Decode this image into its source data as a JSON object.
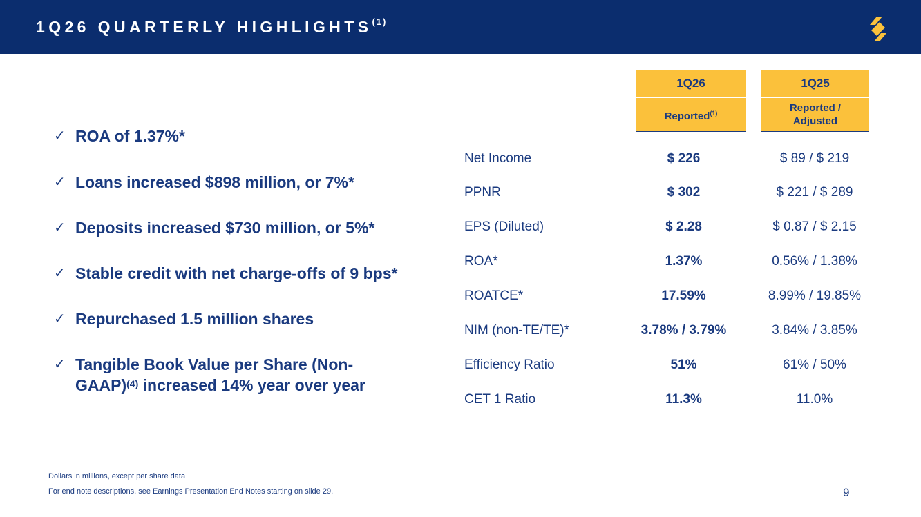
{
  "header": {
    "title": "1Q26 QUARTERLY HIGHLIGHTS",
    "title_note": "(1)",
    "logo_icon": "brand-s-logo-icon",
    "bg_color": "#0b2d6e",
    "accent_color": "#fbc13b"
  },
  "bullets": [
    {
      "text": "ROA of 1.37%*"
    },
    {
      "text": "Loans increased $898 million, or 7%*"
    },
    {
      "text": "Deposits increased $730 million, or 5%*"
    },
    {
      "text": "Stable credit with net charge-offs of 9 bps*"
    },
    {
      "text": "Repurchased 1.5 million shares"
    },
    {
      "text_a": "Tangible Book Value per Share (Non-GAAP)",
      "note": "(4)",
      "text_b": " increased 14% year over year"
    }
  ],
  "check_icon": "checkmark-icon",
  "table": {
    "col1": {
      "period": "1Q26",
      "basis": "Reported",
      "basis_note": "(1)"
    },
    "col2": {
      "period": "1Q25",
      "basis": "Reported / Adjusted"
    },
    "rows": [
      {
        "label": "Net Income",
        "v1": "$ 226",
        "v2": "$ 89 / $ 219"
      },
      {
        "label": "PPNR",
        "v1": "$ 302",
        "v2": "$ 221 / $ 289"
      },
      {
        "label": "EPS (Diluted)",
        "v1": "$ 2.28",
        "v2": "$ 0.87 / $ 2.15"
      },
      {
        "label": "ROA*",
        "v1": "1.37%",
        "v2": "0.56% / 1.38%"
      },
      {
        "label": "ROATCE*",
        "v1": "17.59%",
        "v2": "8.99% / 19.85%"
      },
      {
        "label": "NIM (non-TE/TE)*",
        "v1": "3.78% / 3.79%",
        "v2": "3.84% / 3.85%"
      },
      {
        "label": "Efficiency Ratio",
        "v1": "51%",
        "v2": "61% / 50%"
      },
      {
        "label": "CET 1 Ratio",
        "v1": "11.3%",
        "v2": "11.0%"
      }
    ]
  },
  "footer": {
    "line1": "Dollars in millions, except per share data",
    "line2": "For end note descriptions, see Earnings Presentation End Notes starting on slide 29.",
    "page_number": "9"
  }
}
